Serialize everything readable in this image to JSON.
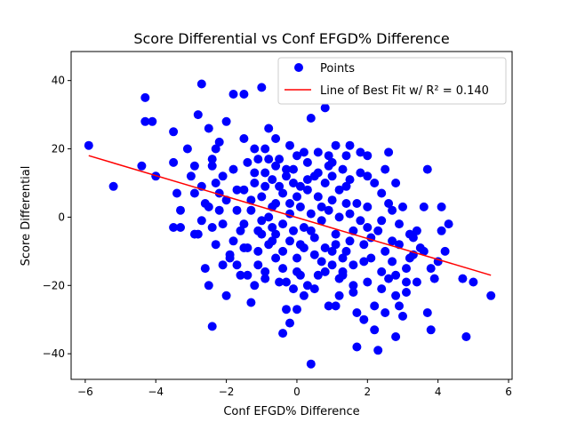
{
  "chart_data": {
    "type": "scatter",
    "title": "Score Differential vs Conf EFGD% Difference",
    "xlabel": "Conf EFGD% Difference",
    "ylabel": "Score Differential",
    "xlim": [
      -6.4,
      6.1
    ],
    "ylim": [
      -47.5,
      48.5
    ],
    "xticks": [
      -6,
      -4,
      -2,
      0,
      2,
      4,
      6
    ],
    "xtick_labels": [
      "−6",
      "−4",
      "−2",
      "0",
      "2",
      "4",
      "6"
    ],
    "yticks": [
      -40,
      -20,
      0,
      20,
      40
    ],
    "ytick_labels": [
      "−40",
      "−20",
      "0",
      "20",
      "40"
    ],
    "grid": false,
    "legend_position": "top-right",
    "series": [
      {
        "name": "Points",
        "color": "#0000ff",
        "marker": "circle",
        "points": [
          [
            -5.9,
            21
          ],
          [
            -5.2,
            9
          ],
          [
            -4.4,
            15
          ],
          [
            -4.3,
            35
          ],
          [
            -4.3,
            28
          ],
          [
            -4.1,
            28
          ],
          [
            -4.0,
            12
          ],
          [
            -3.5,
            25
          ],
          [
            -3.5,
            16
          ],
          [
            -3.4,
            7
          ],
          [
            -3.3,
            2
          ],
          [
            -3.3,
            -3
          ],
          [
            -3.5,
            -3
          ],
          [
            -3.1,
            20
          ],
          [
            -2.9,
            15
          ],
          [
            -2.9,
            7
          ],
          [
            -2.8,
            30
          ],
          [
            -2.7,
            39
          ],
          [
            -2.8,
            -5
          ],
          [
            -2.7,
            -1
          ],
          [
            -2.6,
            -15
          ],
          [
            -2.5,
            -20
          ],
          [
            -2.4,
            -32
          ],
          [
            -2.6,
            4
          ],
          [
            -2.4,
            15
          ],
          [
            -2.5,
            26
          ],
          [
            -2.4,
            17
          ],
          [
            -2.3,
            20
          ],
          [
            -2.3,
            10
          ],
          [
            -2.2,
            7
          ],
          [
            -2.2,
            2
          ],
          [
            -2.1,
            -2
          ],
          [
            -2.1,
            -14
          ],
          [
            -2.0,
            -23
          ],
          [
            -2.0,
            28
          ],
          [
            -1.8,
            14
          ],
          [
            -1.8,
            -7
          ],
          [
            -1.7,
            -14
          ],
          [
            -1.9,
            -11
          ],
          [
            -1.8,
            36
          ],
          [
            -1.5,
            36
          ],
          [
            -1.7,
            2
          ],
          [
            -1.5,
            8
          ],
          [
            -1.5,
            -2
          ],
          [
            -1.5,
            -9
          ],
          [
            -1.4,
            -17
          ],
          [
            -1.3,
            -25
          ],
          [
            -1.3,
            5
          ],
          [
            -1.2,
            13
          ],
          [
            -1.2,
            20
          ],
          [
            -1.1,
            -10
          ],
          [
            -1.1,
            -14
          ],
          [
            -1.0,
            38
          ],
          [
            -1.0,
            -1
          ],
          [
            -0.9,
            9
          ],
          [
            -0.9,
            -16
          ],
          [
            -0.8,
            26
          ],
          [
            -0.8,
            17
          ],
          [
            -0.7,
            3
          ],
          [
            -0.7,
            -7
          ],
          [
            -0.6,
            23
          ],
          [
            -0.6,
            -12
          ],
          [
            -0.5,
            -19
          ],
          [
            -0.4,
            -34
          ],
          [
            -0.4,
            7
          ],
          [
            -0.3,
            -27
          ],
          [
            -0.3,
            14
          ],
          [
            -0.2,
            -31
          ],
          [
            -0.2,
            21
          ],
          [
            -0.1,
            -4
          ],
          [
            -0.1,
            -21
          ],
          [
            0.0,
            -27
          ],
          [
            0.0,
            -16
          ],
          [
            0.0,
            6
          ],
          [
            0.1,
            -8
          ],
          [
            0.2,
            19
          ],
          [
            0.3,
            -20
          ],
          [
            0.3,
            8
          ],
          [
            0.4,
            29
          ],
          [
            0.4,
            -43
          ],
          [
            0.5,
            12
          ],
          [
            0.6,
            -17
          ],
          [
            0.7,
            3
          ],
          [
            0.8,
            32
          ],
          [
            0.8,
            -9
          ],
          [
            0.9,
            -26
          ],
          [
            0.9,
            18
          ],
          [
            1.0,
            -14
          ],
          [
            1.0,
            5
          ],
          [
            1.1,
            -26
          ],
          [
            1.1,
            -5
          ],
          [
            1.2,
            -23
          ],
          [
            1.3,
            14
          ],
          [
            1.3,
            -17
          ],
          [
            1.4,
            -10
          ],
          [
            1.5,
            21
          ],
          [
            1.5,
            -7
          ],
          [
            1.6,
            -22
          ],
          [
            1.7,
            -28
          ],
          [
            1.7,
            4
          ],
          [
            1.7,
            -38
          ],
          [
            1.8,
            19
          ],
          [
            1.9,
            -13
          ],
          [
            1.9,
            -30
          ],
          [
            2.0,
            12
          ],
          [
            2.0,
            -3
          ],
          [
            2.1,
            -12
          ],
          [
            2.2,
            -26
          ],
          [
            2.2,
            -33
          ],
          [
            2.3,
            -39
          ],
          [
            2.4,
            7
          ],
          [
            2.4,
            -16
          ],
          [
            2.5,
            -28
          ],
          [
            2.6,
            19
          ],
          [
            2.6,
            -18
          ],
          [
            2.7,
            -7
          ],
          [
            2.8,
            -35
          ],
          [
            2.8,
            -23
          ],
          [
            2.9,
            -26
          ],
          [
            3.0,
            -29
          ],
          [
            3.0,
            3
          ],
          [
            3.1,
            -19
          ],
          [
            3.2,
            -12
          ],
          [
            3.3,
            -11
          ],
          [
            3.4,
            -4
          ],
          [
            3.5,
            -9
          ],
          [
            3.6,
            3
          ],
          [
            3.7,
            14
          ],
          [
            3.7,
            -28
          ],
          [
            3.8,
            -33
          ],
          [
            3.9,
            -18
          ],
          [
            4.0,
            -13
          ],
          [
            4.1,
            3
          ],
          [
            4.1,
            -4
          ],
          [
            4.2,
            -10
          ],
          [
            4.3,
            -2
          ],
          [
            4.7,
            -18
          ],
          [
            4.8,
            -35
          ],
          [
            5.0,
            -19
          ],
          [
            5.5,
            -23
          ],
          [
            -1.3,
            2
          ],
          [
            -1.0,
            -5
          ],
          [
            -0.8,
            0
          ],
          [
            -0.6,
            4
          ],
          [
            -0.4,
            -2
          ],
          [
            -0.2,
            1
          ],
          [
            0.1,
            3
          ],
          [
            0.2,
            -3
          ],
          [
            0.4,
            1
          ],
          [
            0.5,
            -6
          ],
          [
            0.7,
            -1
          ],
          [
            0.9,
            2
          ],
          [
            1.1,
            -8
          ],
          [
            1.2,
            0
          ],
          [
            1.4,
            4
          ],
          [
            1.6,
            -4
          ],
          [
            -1.2,
            10
          ],
          [
            -0.9,
            13
          ],
          [
            -0.7,
            11
          ],
          [
            -0.5,
            9
          ],
          [
            -0.3,
            12
          ],
          [
            -0.1,
            10
          ],
          [
            0.1,
            9
          ],
          [
            0.3,
            11
          ],
          [
            0.6,
            13
          ],
          [
            0.8,
            10
          ],
          [
            1.0,
            12
          ],
          [
            1.2,
            8
          ],
          [
            1.4,
            9
          ],
          [
            -1.1,
            -4
          ],
          [
            -0.8,
            -8
          ],
          [
            -0.6,
            -5
          ],
          [
            -0.4,
            -10
          ],
          [
            -0.2,
            -7
          ],
          [
            0.0,
            -12
          ],
          [
            0.2,
            -9
          ],
          [
            0.5,
            -11
          ],
          [
            0.7,
            -13
          ],
          [
            1.0,
            -10
          ],
          [
            1.3,
            -12
          ],
          [
            1.6,
            -14
          ],
          [
            1.9,
            -8
          ],
          [
            2.1,
            -6
          ],
          [
            2.3,
            -4
          ],
          [
            2.5,
            -10
          ],
          [
            2.7,
            -13
          ],
          [
            2.9,
            -8
          ],
          [
            3.1,
            -15
          ],
          [
            3.3,
            -6
          ],
          [
            -2.0,
            5
          ],
          [
            -1.7,
            8
          ],
          [
            -1.6,
            -4
          ],
          [
            -2.3,
            -8
          ],
          [
            -2.1,
            12
          ],
          [
            -1.9,
            -12
          ],
          [
            -2.2,
            22
          ],
          [
            -1.4,
            16
          ],
          [
            -0.9,
            20
          ],
          [
            -0.5,
            17
          ],
          [
            -0.1,
            14
          ],
          [
            0.3,
            16
          ],
          [
            0.6,
            19
          ],
          [
            1.0,
            16
          ],
          [
            1.4,
            18
          ],
          [
            1.8,
            13
          ],
          [
            2.2,
            10
          ],
          [
            2.5,
            14
          ],
          [
            2.8,
            10
          ],
          [
            -1.6,
            -17
          ],
          [
            -1.2,
            -20
          ],
          [
            -0.9,
            -18
          ],
          [
            -0.3,
            -19
          ],
          [
            0.1,
            -17
          ],
          [
            0.5,
            -21
          ],
          [
            0.8,
            -16
          ],
          [
            1.2,
            -18
          ],
          [
            1.6,
            -20
          ],
          [
            2.0,
            -19
          ],
          [
            2.4,
            -21
          ],
          [
            2.8,
            -17
          ],
          [
            3.1,
            -22
          ],
          [
            -2.7,
            9
          ],
          [
            -2.5,
            3
          ],
          [
            -2.4,
            -3
          ],
          [
            -2.9,
            -5
          ],
          [
            -3.0,
            12
          ],
          [
            -1.0,
            6
          ],
          [
            -0.7,
            -3
          ],
          [
            -0.2,
            4
          ],
          [
            0.4,
            -4
          ],
          [
            0.6,
            6
          ],
          [
            1.5,
            1
          ],
          [
            1.8,
            -1
          ],
          [
            2.0,
            3
          ],
          [
            2.4,
            -1
          ],
          [
            2.6,
            4
          ],
          [
            2.9,
            -2
          ],
          [
            3.2,
            -5
          ],
          [
            3.6,
            -10
          ],
          [
            3.8,
            -15
          ],
          [
            3.4,
            -19
          ],
          [
            -1.1,
            17
          ],
          [
            -1.4,
            -9
          ],
          [
            -0.6,
            15
          ],
          [
            0.0,
            18
          ],
          [
            0.9,
            15
          ],
          [
            1.5,
            11
          ],
          [
            2.0,
            18
          ],
          [
            2.7,
            2
          ],
          [
            1.1,
            21
          ],
          [
            -1.5,
            23
          ],
          [
            -0.4,
            -15
          ],
          [
            0.2,
            -23
          ],
          [
            1.3,
            -16
          ]
        ]
      },
      {
        "name": "Line of Best Fit w/ R² = 0.140",
        "color": "#ff0000",
        "type": "line",
        "points": [
          [
            -5.9,
            18.0
          ],
          [
            5.5,
            -17.0
          ]
        ]
      }
    ],
    "legend": [
      {
        "label": "Points",
        "marker": "circle",
        "color": "#0000ff"
      },
      {
        "label": "Line of Best Fit w/ R² = 0.140",
        "marker": "line",
        "color": "#ff0000"
      }
    ]
  }
}
